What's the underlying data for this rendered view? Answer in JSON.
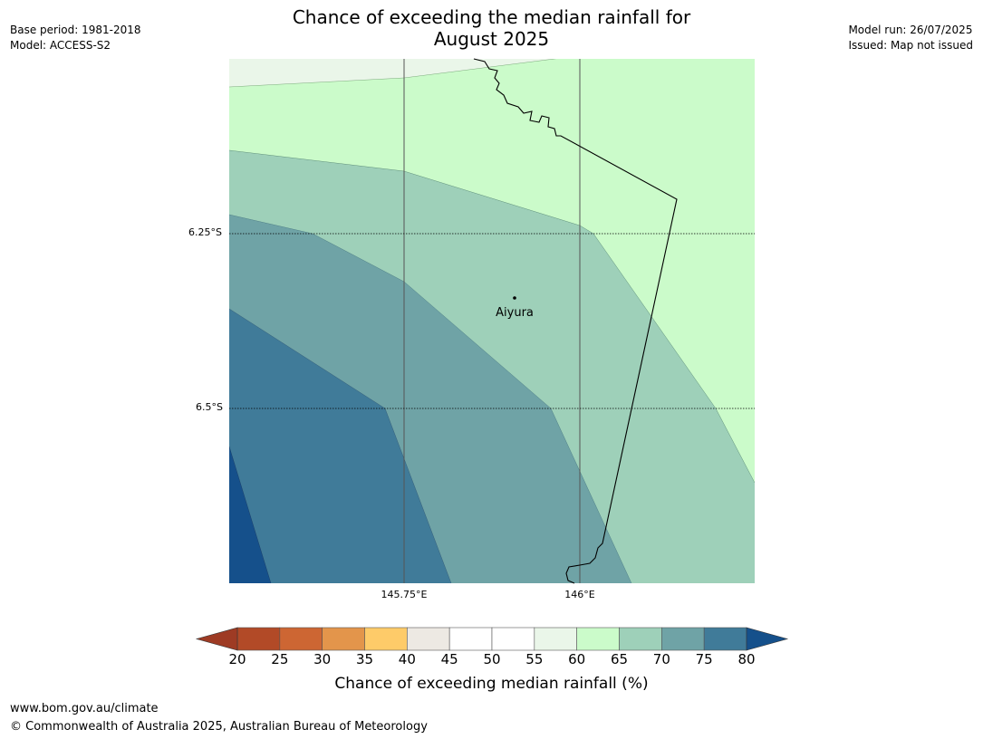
{
  "title_lines": [
    "Chance of exceeding the median rainfall for",
    "August 2025"
  ],
  "meta_left": {
    "base_period": "Base period: 1981-2018",
    "model": "Model: ACCESS-S2"
  },
  "meta_right": {
    "model_run": "Model run: 26/07/2025",
    "issued": "Issued: Map not issued"
  },
  "map": {
    "lat_ticks": [
      "6.25°S",
      "6.5°S"
    ],
    "lon_ticks": [
      "145.75°E",
      "146°E"
    ],
    "place_label": "Aiyura"
  },
  "colorbar": {
    "ticks": [
      "20",
      "25",
      "30",
      "35",
      "40",
      "45",
      "50",
      "55",
      "60",
      "65",
      "70",
      "75",
      "80"
    ],
    "colors": [
      "#b24a27",
      "#cd6633",
      "#e3954b",
      "#fecb69",
      "#ede9e3",
      "#ffffff",
      "#ffffff",
      "#eaf6e9",
      "#cbfbca",
      "#9ed0b9",
      "#6fa3a6",
      "#407b99"
    ],
    "under_color": "#9e3b24",
    "over_color": "#15508b",
    "label": "Chance of exceeding median rainfall (%)"
  },
  "footer": {
    "url": "www.bom.gov.au/climate",
    "copyright": "© Commonwealth of Australia 2025, Australian Bureau of Meteorology"
  }
}
